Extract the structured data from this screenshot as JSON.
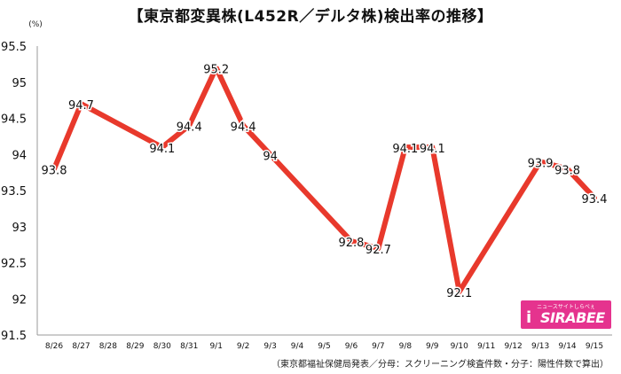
{
  "title": "【東京都変異株(L452R／デルタ株)検出率の推移】",
  "source_note": "（東京都福祉保健局発表／分母：スクリーニング検査件数・分子：陽性件数で算出）",
  "logo": {
    "tagline": "ニュースサイトしらべぇ",
    "name": "SIRABEE",
    "mark": "i"
  },
  "colors": {
    "line": "#e8392c",
    "logo": "#e5338e",
    "grid": "#cccccc"
  },
  "chart_data": {
    "type": "line",
    "ylabel": "(%)",
    "ylim": [
      91.5,
      95.5
    ],
    "yticks": [
      "91.5",
      "92",
      "92.5",
      "93",
      "93.5",
      "94",
      "94.5",
      "95",
      "95.5"
    ],
    "categories": [
      "8/26",
      "8/27",
      "8/28",
      "8/29",
      "8/30",
      "8/31",
      "9/1",
      "9/2",
      "9/3",
      "9/4",
      "9/5",
      "9/6",
      "9/7",
      "9/8",
      "9/9",
      "9/10",
      "9/11",
      "9/12",
      "9/13",
      "9/14",
      "9/15"
    ],
    "series": [
      {
        "values": [
          93.8,
          94.7,
          null,
          null,
          94.1,
          94.4,
          95.2,
          94.4,
          94,
          null,
          null,
          92.8,
          92.7,
          94.1,
          94.1,
          92.1,
          null,
          null,
          93.9,
          93.8,
          93.4
        ]
      }
    ],
    "data_labels": [
      "93.8",
      "94.7",
      "",
      "",
      "94.1",
      "94.4",
      "95.2",
      "94.4",
      "94",
      "",
      "",
      "92.8",
      "92.7",
      "94.1",
      "94.1",
      "92.1",
      "",
      "",
      "93.9",
      "93.8",
      "93.4"
    ],
    "grid": false
  }
}
